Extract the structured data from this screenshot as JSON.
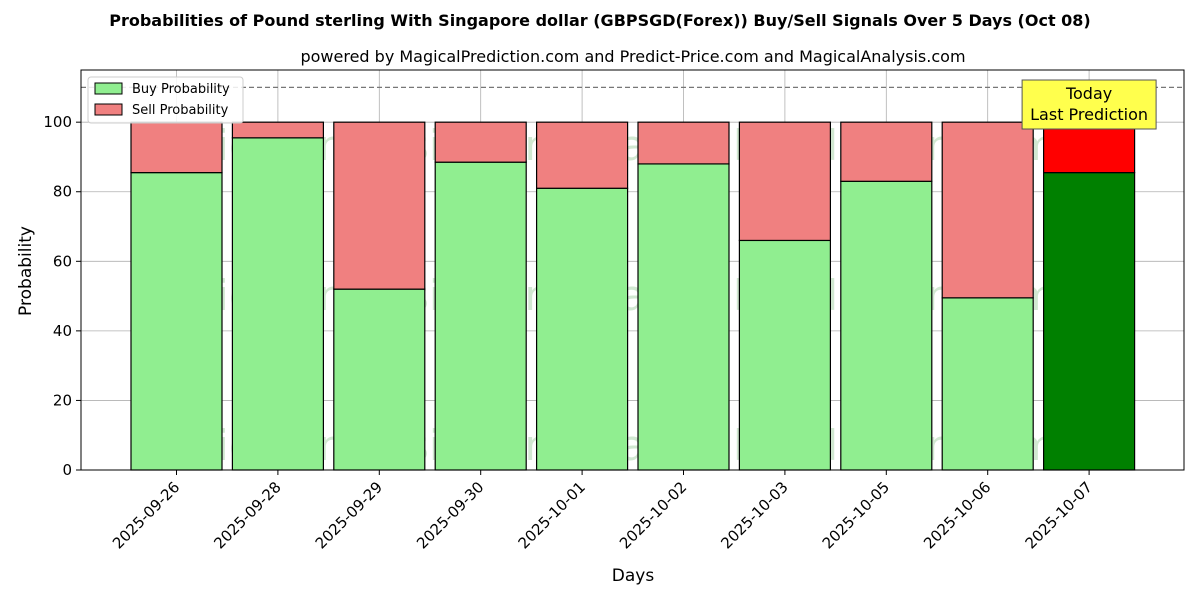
{
  "chart_data": {
    "type": "bar",
    "stacked": true,
    "title": "Probabilities of Pound sterling With Singapore dollar (GBPSGD(Forex)) Buy/Sell Signals Over 5 Days (Oct 08)",
    "subtitle": "powered by MagicalPrediction.com and Predict-Price.com and MagicalAnalysis.com",
    "xlabel": "Days",
    "ylabel": "Probability",
    "ylim": [
      0,
      115
    ],
    "yticks": [
      0,
      20,
      40,
      60,
      80,
      100
    ],
    "reference_line": 110,
    "grid": true,
    "legend_position": "top-left",
    "categories": [
      "2025-09-26",
      "2025-09-28",
      "2025-09-29",
      "2025-09-30",
      "2025-10-01",
      "2025-10-02",
      "2025-10-03",
      "2025-10-05",
      "2025-10-06",
      "2025-10-07"
    ],
    "series": [
      {
        "name": "Buy Probability",
        "color": "#90ee90",
        "highlight_color": "#008000",
        "values": [
          85.5,
          95.5,
          52,
          88.5,
          81,
          88,
          66,
          83,
          49.5,
          85.5
        ]
      },
      {
        "name": "Sell Probability",
        "color": "#f08080",
        "highlight_color": "#ff0000",
        "values": [
          14.5,
          4.5,
          48,
          11.5,
          19,
          12,
          34,
          17,
          50.5,
          14.5
        ]
      }
    ],
    "highlight_index": 9,
    "annotation": {
      "lines": [
        "Today",
        "Last Prediction"
      ],
      "color": "#ffff4d"
    },
    "watermarks": [
      "MagicalAnalysis.com",
      "MagicalPrediction.com"
    ]
  }
}
